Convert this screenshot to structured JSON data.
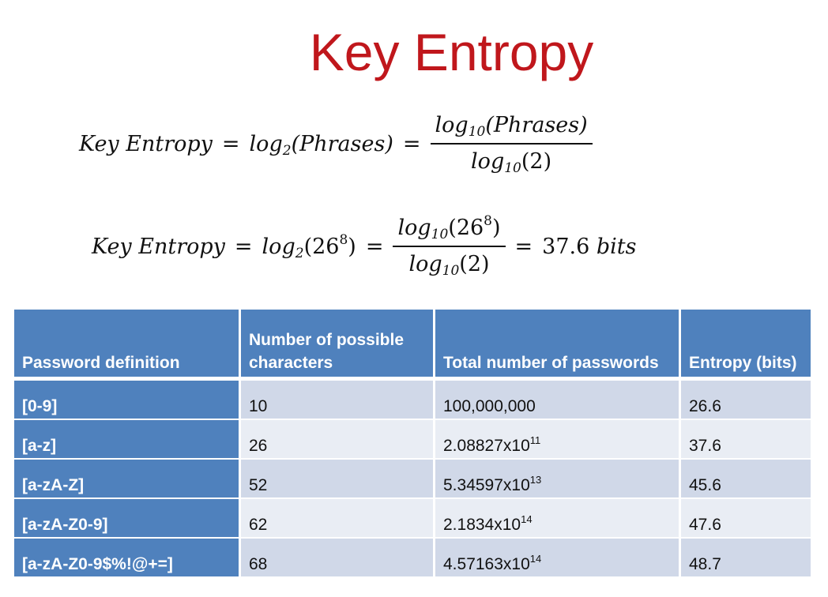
{
  "slide": {
    "title": "Key Entropy"
  },
  "formulas": {
    "general": {
      "lhs": "Key Entropy",
      "log_base": "log",
      "base2": "2",
      "base10": "10",
      "arg": "(Phrases)",
      "denominator_arg": "(2)"
    },
    "example": {
      "lhs": "Key Entropy",
      "log_base": "log",
      "base2": "2",
      "base10": "10",
      "arg_base": "(26",
      "arg_exp": "8",
      "arg_close": ")",
      "denominator_arg": "(2)",
      "result_value": "37.6",
      "result_unit": "bits"
    }
  },
  "table": {
    "headers": {
      "col1": "Password definition",
      "col2": "Number of possible characters",
      "col3": "Total number of passwords",
      "col4": "Entropy (bits)"
    },
    "rows": [
      {
        "definition": "[0-9]",
        "chars": "10",
        "total_mantissa": "100,000,000",
        "total_exp": "",
        "entropy": "26.6"
      },
      {
        "definition": "[a-z]",
        "chars": "26",
        "total_mantissa": "2.08827x10",
        "total_exp": "11",
        "entropy": "37.6"
      },
      {
        "definition": "[a-zA-Z]",
        "chars": "52",
        "total_mantissa": "5.34597x10",
        "total_exp": "13",
        "entropy": "45.6"
      },
      {
        "definition": "[a-zA-Z0-9]",
        "chars": "62",
        "total_mantissa": "2.1834x10",
        "total_exp": "14",
        "entropy": "47.6"
      },
      {
        "definition": "[a-zA-Z0-9$%!@+=]",
        "chars": "68",
        "total_mantissa": "4.57163x10",
        "total_exp": "14",
        "entropy": "48.7"
      }
    ]
  },
  "colors": {
    "title": "#c0171c",
    "header_blue": "#4f81bd",
    "row_dark": "#d0d8e8",
    "row_light": "#e9edf4"
  }
}
